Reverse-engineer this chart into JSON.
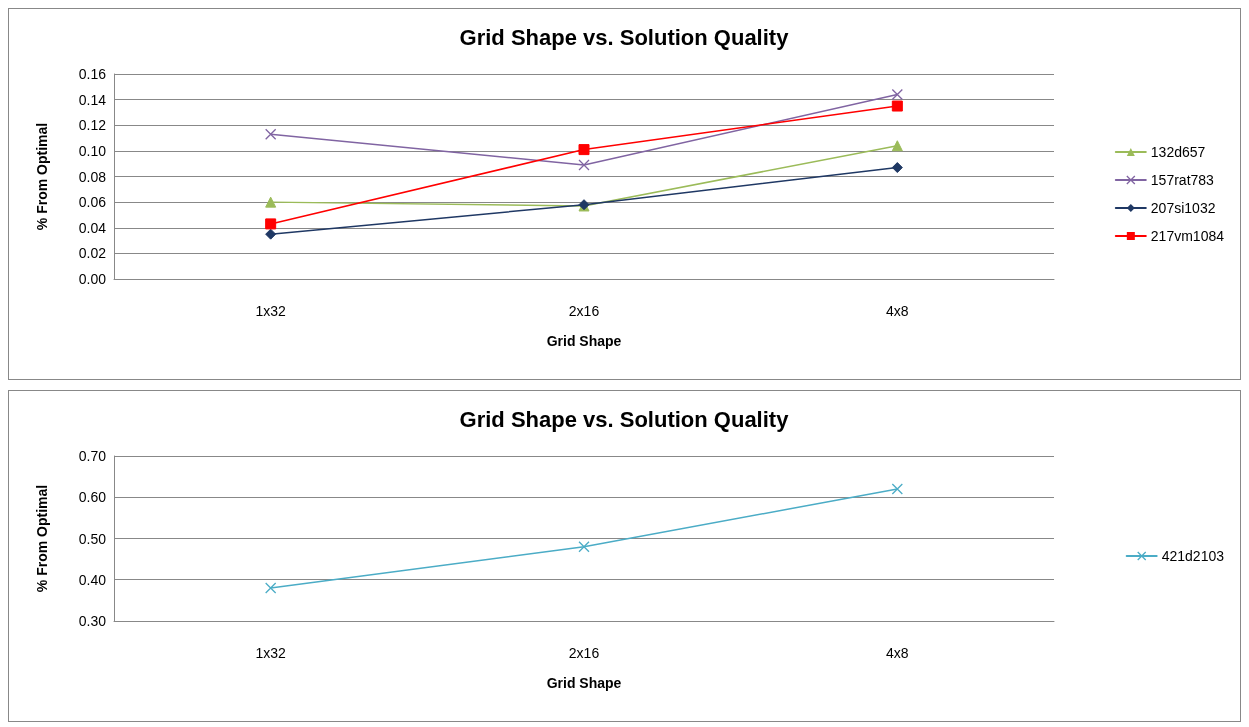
{
  "chart_data": [
    {
      "type": "line",
      "title": "Grid Shape vs. Solution Quality",
      "xlabel": "Grid Shape",
      "ylabel": "% From Optimal",
      "categories": [
        "1x32",
        "2x16",
        "4x8"
      ],
      "series": [
        {
          "name": "132d657",
          "color": "#9bbb59",
          "marker": "triangle",
          "values": [
            0.06,
            0.057,
            0.104
          ]
        },
        {
          "name": "157rat783",
          "color": "#8064a2",
          "marker": "cross",
          "values": [
            0.113,
            0.089,
            0.144
          ]
        },
        {
          "name": "207si1032",
          "color": "#1f3864",
          "marker": "diamond",
          "values": [
            0.035,
            0.058,
            0.087
          ]
        },
        {
          "name": "217vm1084",
          "color": "#ff0000",
          "marker": "square",
          "values": [
            0.043,
            0.101,
            0.135
          ]
        }
      ],
      "ylim": [
        0,
        0.16
      ],
      "yticks": [
        {
          "value": 0,
          "label": "0.00"
        },
        {
          "value": 0.02,
          "label": "0.02"
        },
        {
          "value": 0.04,
          "label": "0.04"
        },
        {
          "value": 0.06,
          "label": "0.06"
        },
        {
          "value": 0.08,
          "label": "0.08"
        },
        {
          "value": 0.1,
          "label": "0.10"
        },
        {
          "value": 0.12,
          "label": "0.12"
        },
        {
          "value": 0.14,
          "label": "0.14"
        },
        {
          "value": 0.16,
          "label": "0.16"
        }
      ],
      "grid": "y",
      "legend": "right",
      "line_style": "solid"
    },
    {
      "type": "line",
      "title": "Grid Shape vs. Solution Quality",
      "xlabel": "Grid Shape",
      "ylabel": "% From Optimal",
      "categories": [
        "1x32",
        "2x16",
        "4x8"
      ],
      "series": [
        {
          "name": "421d2103",
          "color": "#4bacc6",
          "marker": "cross",
          "values": [
            0.38,
            0.48,
            0.62
          ]
        }
      ],
      "ylim": [
        0.3,
        0.7
      ],
      "yticks": [
        {
          "value": 0.3,
          "label": "0.30"
        },
        {
          "value": 0.4,
          "label": "0.40"
        },
        {
          "value": 0.5,
          "label": "0.50"
        },
        {
          "value": 0.6,
          "label": "0.60"
        },
        {
          "value": 0.7,
          "label": "0.70"
        }
      ],
      "grid": "y",
      "legend": "right",
      "line_style": "solid"
    }
  ]
}
